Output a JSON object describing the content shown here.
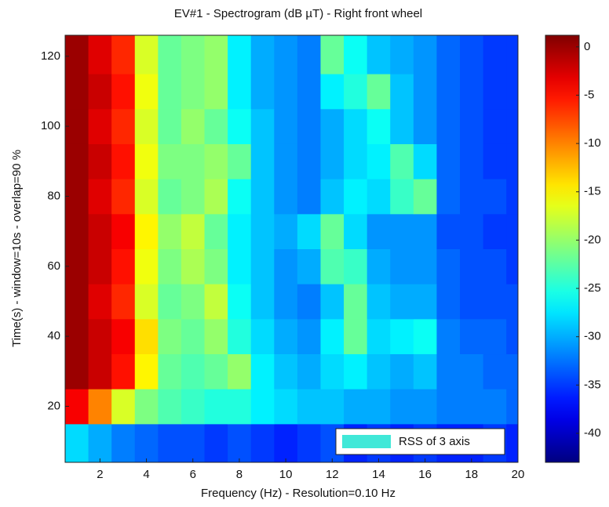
{
  "chart_data": {
    "type": "heatmap",
    "title": "EV#1 - Spectrogram (dB µT) - Right front wheel",
    "x_label": "Frequency (Hz) - Resolution=0.10 Hz",
    "y_label": "Time(s) - window=10s - overlap=90 %",
    "x": [
      1,
      2,
      3,
      4,
      5,
      6,
      7,
      8,
      9,
      10,
      11,
      12,
      13,
      14,
      15,
      16,
      17,
      18,
      19,
      20
    ],
    "y": [
      10,
      20,
      30,
      40,
      50,
      60,
      70,
      80,
      90,
      100,
      110,
      120
    ],
    "series": [
      {
        "name": "RSS of 3 axis",
        "color": "#40e8d8",
        "values": [
          [
            -28,
            -30,
            -32,
            -33,
            -34,
            -34,
            -35,
            -34,
            -35,
            -36,
            -35,
            -34,
            -36,
            -35,
            -36,
            -35,
            -36,
            -36,
            -35,
            -36
          ],
          [
            -4,
            -10,
            -17,
            -21,
            -23,
            -24,
            -25,
            -25,
            -27,
            -28,
            -29,
            -29,
            -30,
            -30,
            -31,
            -31,
            -32,
            -32,
            -32,
            -33
          ],
          [
            0,
            -2,
            -5,
            -15,
            -22,
            -23,
            -22,
            -20,
            -27,
            -29,
            -30,
            -28,
            -27,
            -29,
            -30,
            -29,
            -32,
            -32,
            -33,
            -33
          ],
          [
            0,
            -2,
            -4,
            -14,
            -21,
            -22,
            -20,
            -25,
            -28,
            -30,
            -31,
            -27,
            -22,
            -28,
            -27,
            -26,
            -32,
            -33,
            -33,
            -34
          ],
          [
            0,
            -3,
            -6,
            -17,
            -22,
            -21,
            -18,
            -26,
            -29,
            -31,
            -32,
            -29,
            -22,
            -29,
            -30,
            -30,
            -33,
            -34,
            -34,
            -34
          ],
          [
            0,
            -2,
            -5,
            -16,
            -21,
            -19,
            -21,
            -27,
            -29,
            -31,
            -30,
            -23,
            -24,
            -30,
            -31,
            -31,
            -33,
            -34,
            -34,
            -35
          ],
          [
            0,
            -2,
            -4,
            -15,
            -20,
            -18,
            -22,
            -27,
            -29,
            -30,
            -28,
            -22,
            -28,
            -31,
            -31,
            -31,
            -34,
            -34,
            -35,
            -35
          ],
          [
            0,
            -3,
            -6,
            -17,
            -22,
            -21,
            -19,
            -26,
            -29,
            -31,
            -32,
            -29,
            -27,
            -28,
            -24,
            -22,
            -33,
            -34,
            -34,
            -35
          ],
          [
            0,
            -2,
            -5,
            -16,
            -21,
            -21,
            -20,
            -22,
            -29,
            -31,
            -32,
            -30,
            -28,
            -27,
            -23,
            -28,
            -33,
            -34,
            -35,
            -35
          ],
          [
            0,
            -3,
            -6,
            -17,
            -22,
            -20,
            -22,
            -26,
            -29,
            -31,
            -32,
            -30,
            -28,
            -26,
            -29,
            -31,
            -33,
            -34,
            -35,
            -35
          ],
          [
            0,
            -2,
            -5,
            -16,
            -22,
            -21,
            -20,
            -27,
            -30,
            -31,
            -32,
            -27,
            -25,
            -22,
            -29,
            -31,
            -33,
            -34,
            -35,
            -35
          ],
          [
            0,
            -3,
            -6,
            -17,
            -22,
            -21,
            -20,
            -27,
            -30,
            -31,
            -32,
            -22,
            -26,
            -29,
            -30,
            -31,
            -33,
            -34,
            -35,
            -35
          ]
        ]
      }
    ],
    "xlim": [
      0.5,
      20
    ],
    "xticks": [
      2,
      4,
      6,
      8,
      10,
      12,
      14,
      16,
      18,
      20
    ],
    "ylim": [
      4,
      126
    ],
    "yticks": [
      20,
      40,
      60,
      80,
      100,
      120
    ],
    "zlim": [
      -43,
      1.2
    ],
    "zticks": [
      0,
      -5,
      -10,
      -15,
      -20,
      -25,
      -30,
      -35,
      -40
    ],
    "colormap": "jet",
    "legend": "lower right"
  }
}
